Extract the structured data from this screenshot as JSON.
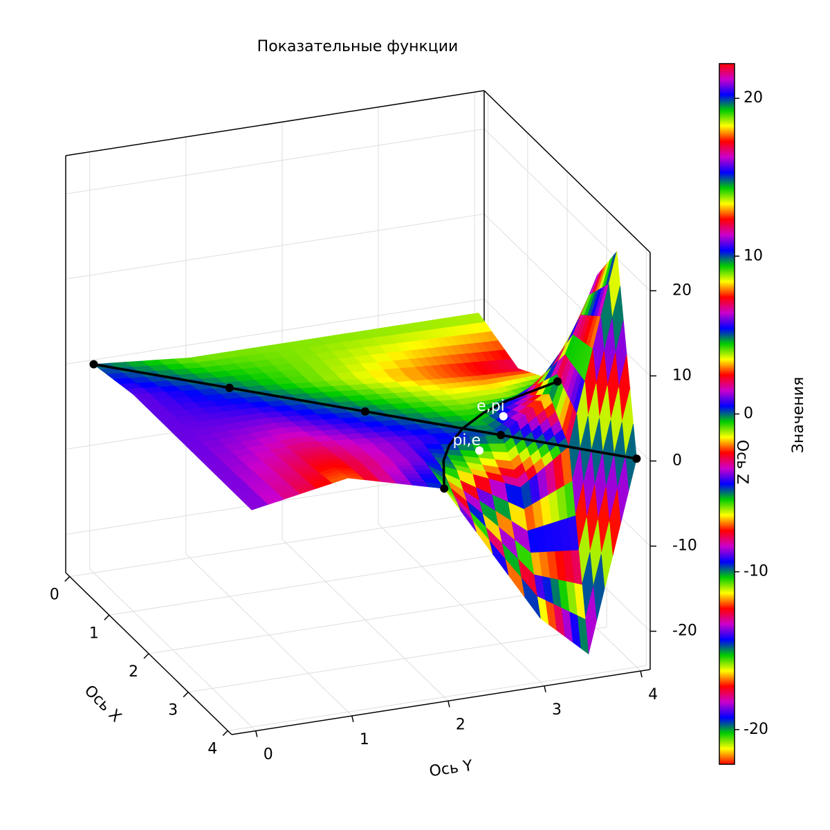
{
  "chart_data": {
    "type": "surface3d",
    "title": "Показательные функции",
    "xlabel": "Ось X",
    "ylabel": "Ось Y",
    "zlabel": "Ось Z",
    "xlim": [
      -0.1,
      4.1
    ],
    "ylim": [
      -0.25,
      4.1
    ],
    "zlim": [
      -24.5,
      24.5
    ],
    "xticks": [
      0,
      1,
      2,
      3,
      4
    ],
    "yticks": [
      0,
      1,
      2,
      3,
      4
    ],
    "zticks": [
      -20,
      -10,
      0,
      10,
      20
    ],
    "grid": true,
    "surface": {
      "x": [
        0,
        1,
        2,
        3,
        3.5,
        4
      ],
      "y": [
        0,
        1,
        2,
        3,
        3.5,
        4
      ],
      "z": [
        [
          0,
          -1,
          -1,
          -1,
          -1,
          -1
        ],
        [
          1,
          0,
          -1,
          -2,
          -2.5,
          -3
        ],
        [
          1,
          1,
          0,
          -1,
          -0.94,
          0
        ],
        [
          1,
          2,
          1,
          0,
          3.9,
          17
        ],
        [
          1,
          2.5,
          0.94,
          -3.9,
          0,
          22.06
        ],
        [
          1,
          3,
          0,
          -17,
          -22.06,
          0
        ]
      ]
    },
    "colormap": [
      "#ff0000",
      "#ffff00",
      "#00cc00",
      "#0000ff",
      "#cc00cc",
      "#ff0000",
      "#ffff00",
      "#00cc00",
      "#0000ff",
      "#cc00cc",
      "#ff0000",
      "#ffff00",
      "#00cc00",
      "#0000ff",
      "#cc00cc",
      "#ff0000",
      "#ffff00",
      "#00cc00",
      "#0000ff",
      "#cc00cc",
      "#ff0000",
      "#ffff00",
      "#00cc00",
      "#0000ff",
      "#cc00cc",
      "#ff0000",
      "#ffff00",
      "#00cc00",
      "#0000ff",
      "#cc00cc",
      "#ff0000",
      "#ffff00",
      "#00cc00",
      "#0000ff",
      "#cc00cc",
      "#ff0000",
      "#ffff00",
      "#00cc00",
      "#0000ff",
      "#cc00cc",
      "#ff0000",
      "#ffff00",
      "#00cc00",
      "#0000ff",
      "#cc00cc",
      "#ff0000"
    ],
    "colorbar": {
      "label": "Значения",
      "clim": [
        -22.2,
        22.2
      ],
      "ticks": [
        -20,
        -10,
        0,
        10,
        20
      ]
    },
    "lines": [
      {
        "x": [
          0,
          1,
          2,
          3,
          4
        ],
        "y": [
          0,
          1,
          2,
          3,
          4
        ],
        "z": [
          0,
          0,
          0,
          0,
          0
        ],
        "color": "#000000",
        "markers": "all"
      },
      {
        "x": [
          2,
          2.25,
          2.441,
          2.718,
          3.052,
          3.375,
          4
        ],
        "y": [
          4,
          3.375,
          3.052,
          2.718,
          2.441,
          2.25,
          2
        ],
        "z": [
          0,
          0,
          0,
          0,
          0,
          0,
          0
        ],
        "color": "#000000",
        "markers": "ends"
      }
    ],
    "points": [
      {
        "label": "e,pi",
        "x": 2.718,
        "y": 3.142,
        "z": 0.682,
        "color": "#ffffff"
      },
      {
        "label": "pi,e",
        "x": 3.142,
        "y": 2.718,
        "z": -0.682,
        "color": "#ffffff"
      }
    ]
  }
}
